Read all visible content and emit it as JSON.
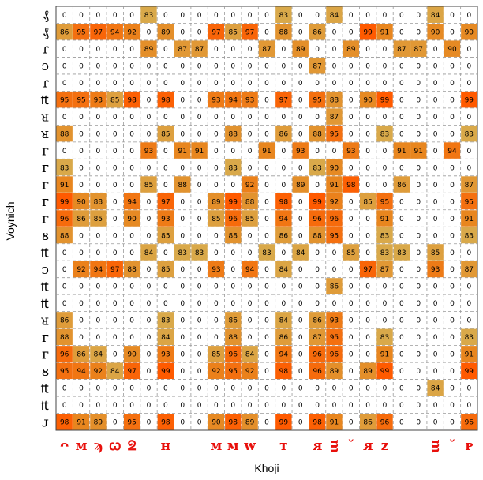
{
  "chart_data": {
    "type": "heatmap",
    "title": "",
    "xlabel": "Khoji",
    "ylabel": "Voynich",
    "x_labels": [
      "ᴖ",
      "ᴍ",
      "ϡ",
      "ꞷ",
      "ᘖ",
      "",
      "ʜ",
      "",
      "",
      "ᴍ",
      "ᴍ",
      "ᴡ",
      "",
      "ᴛ",
      "",
      "ᴙ",
      "ᴟ",
      "ˇ",
      "ᴙ",
      "ᴢ",
      "",
      "",
      "ᴟ",
      "ˇ",
      "ᴘ"
    ],
    "y_labels": [
      "₰",
      "₰",
      "ɾ",
      "ɔ",
      "ɾ",
      "₶",
      "ᴚ",
      "ᴚ",
      "ᴦ",
      "ᴦ",
      "ᴦ",
      "ᴦ",
      "ᴦ",
      "ᴕ",
      "₶",
      "ᴐ",
      "₶",
      "₶",
      "ᴚ",
      "ᴦ",
      "ᴦ",
      "ᴕ",
      "₶",
      "₶",
      "ᴊ"
    ],
    "color_scale": {
      "low": "#d9a94a",
      "mid": "#e8861f",
      "high": "#ff5a00"
    },
    "values": [
      [
        0,
        0,
        0,
        0,
        0,
        83,
        0,
        0,
        0,
        0,
        0,
        0,
        0,
        83,
        0,
        0,
        84,
        0,
        0,
        0,
        0,
        0,
        84,
        0,
        0
      ],
      [
        86,
        95,
        97,
        94,
        92,
        0,
        89,
        0,
        0,
        97,
        85,
        97,
        0,
        88,
        0,
        86,
        0,
        0,
        99,
        91,
        0,
        0,
        90,
        0,
        90
      ],
      [
        0,
        0,
        0,
        0,
        0,
        89,
        0,
        87,
        87,
        0,
        0,
        0,
        87,
        0,
        89,
        0,
        0,
        89,
        0,
        0,
        87,
        87,
        0,
        90,
        0
      ],
      [
        0,
        0,
        0,
        0,
        0,
        0,
        0,
        0,
        0,
        0,
        0,
        0,
        0,
        0,
        0,
        87,
        0,
        0,
        0,
        0,
        0,
        0,
        0,
        0,
        0
      ],
      [
        0,
        0,
        0,
        0,
        0,
        0,
        0,
        0,
        0,
        0,
        0,
        0,
        0,
        0,
        0,
        0,
        0,
        0,
        0,
        0,
        0,
        0,
        0,
        0,
        0
      ],
      [
        95,
        95,
        93,
        85,
        98,
        0,
        98,
        0,
        0,
        93,
        94,
        93,
        0,
        97,
        0,
        95,
        88,
        0,
        90,
        99,
        0,
        0,
        0,
        0,
        99
      ],
      [
        0,
        0,
        0,
        0,
        0,
        0,
        0,
        0,
        0,
        0,
        0,
        0,
        0,
        0,
        0,
        0,
        87,
        0,
        0,
        0,
        0,
        0,
        0,
        0,
        0
      ],
      [
        88,
        0,
        0,
        0,
        0,
        0,
        85,
        0,
        0,
        0,
        88,
        0,
        0,
        86,
        0,
        88,
        95,
        0,
        0,
        83,
        0,
        0,
        0,
        0,
        83
      ],
      [
        0,
        0,
        0,
        0,
        0,
        93,
        0,
        91,
        91,
        0,
        0,
        0,
        91,
        0,
        93,
        0,
        0,
        93,
        0,
        0,
        91,
        91,
        0,
        94,
        0
      ],
      [
        83,
        0,
        0,
        0,
        0,
        0,
        0,
        0,
        0,
        0,
        83,
        0,
        0,
        0,
        0,
        83,
        90,
        0,
        0,
        0,
        0,
        0,
        0,
        0,
        0
      ],
      [
        91,
        0,
        0,
        0,
        0,
        85,
        0,
        88,
        0,
        0,
        0,
        92,
        0,
        0,
        89,
        0,
        91,
        98,
        0,
        0,
        86,
        0,
        0,
        0,
        87
      ],
      [
        99,
        90,
        88,
        0,
        94,
        0,
        97,
        0,
        0,
        89,
        99,
        88,
        0,
        98,
        0,
        99,
        92,
        0,
        85,
        95,
        0,
        0,
        0,
        0,
        95
      ],
      [
        96,
        86,
        85,
        0,
        90,
        0,
        93,
        0,
        0,
        85,
        96,
        85,
        0,
        94,
        0,
        96,
        96,
        0,
        0,
        91,
        0,
        0,
        0,
        0,
        91
      ],
      [
        88,
        0,
        0,
        0,
        0,
        0,
        85,
        0,
        0,
        0,
        88,
        0,
        0,
        86,
        0,
        88,
        95,
        0,
        0,
        83,
        0,
        0,
        0,
        0,
        83
      ],
      [
        0,
        0,
        0,
        0,
        0,
        84,
        0,
        83,
        83,
        0,
        0,
        0,
        83,
        0,
        84,
        0,
        0,
        85,
        0,
        83,
        83,
        0,
        85,
        0,
        0
      ],
      [
        0,
        92,
        94,
        97,
        88,
        0,
        85,
        0,
        0,
        93,
        0,
        94,
        0,
        84,
        0,
        0,
        0,
        0,
        97,
        87,
        0,
        0,
        93,
        0,
        87
      ],
      [
        0,
        0,
        0,
        0,
        0,
        0,
        0,
        0,
        0,
        0,
        0,
        0,
        0,
        0,
        0,
        0,
        86,
        0,
        0,
        0,
        0,
        0,
        0,
        0,
        0
      ],
      [
        0,
        0,
        0,
        0,
        0,
        0,
        0,
        0,
        0,
        0,
        0,
        0,
        0,
        0,
        0,
        0,
        0,
        0,
        0,
        0,
        0,
        0,
        0,
        0,
        0
      ],
      [
        86,
        0,
        0,
        0,
        0,
        0,
        83,
        0,
        0,
        0,
        86,
        0,
        0,
        84,
        0,
        86,
        93,
        0,
        0,
        0,
        0,
        0,
        0,
        0,
        0
      ],
      [
        88,
        0,
        0,
        0,
        0,
        0,
        84,
        0,
        0,
        0,
        88,
        0,
        0,
        86,
        0,
        87,
        95,
        0,
        0,
        83,
        0,
        0,
        0,
        0,
        83
      ],
      [
        96,
        86,
        84,
        0,
        90,
        0,
        93,
        0,
        0,
        85,
        96,
        84,
        0,
        94,
        0,
        96,
        96,
        0,
        0,
        91,
        0,
        0,
        0,
        0,
        91
      ],
      [
        95,
        94,
        92,
        84,
        97,
        0,
        99,
        0,
        0,
        92,
        95,
        92,
        0,
        98,
        0,
        96,
        89,
        0,
        89,
        99,
        0,
        0,
        0,
        0,
        99
      ],
      [
        0,
        0,
        0,
        0,
        0,
        0,
        0,
        0,
        0,
        0,
        0,
        0,
        0,
        0,
        0,
        0,
        0,
        0,
        0,
        0,
        0,
        0,
        84,
        0,
        0
      ],
      [
        0,
        0,
        0,
        0,
        0,
        0,
        0,
        0,
        0,
        0,
        0,
        0,
        0,
        0,
        0,
        0,
        0,
        0,
        0,
        0,
        0,
        0,
        0,
        0,
        0
      ],
      [
        98,
        91,
        89,
        0,
        95,
        0,
        98,
        0,
        0,
        90,
        98,
        89,
        0,
        99,
        0,
        98,
        91,
        0,
        86,
        96,
        0,
        0,
        0,
        0,
        96
      ]
    ]
  }
}
